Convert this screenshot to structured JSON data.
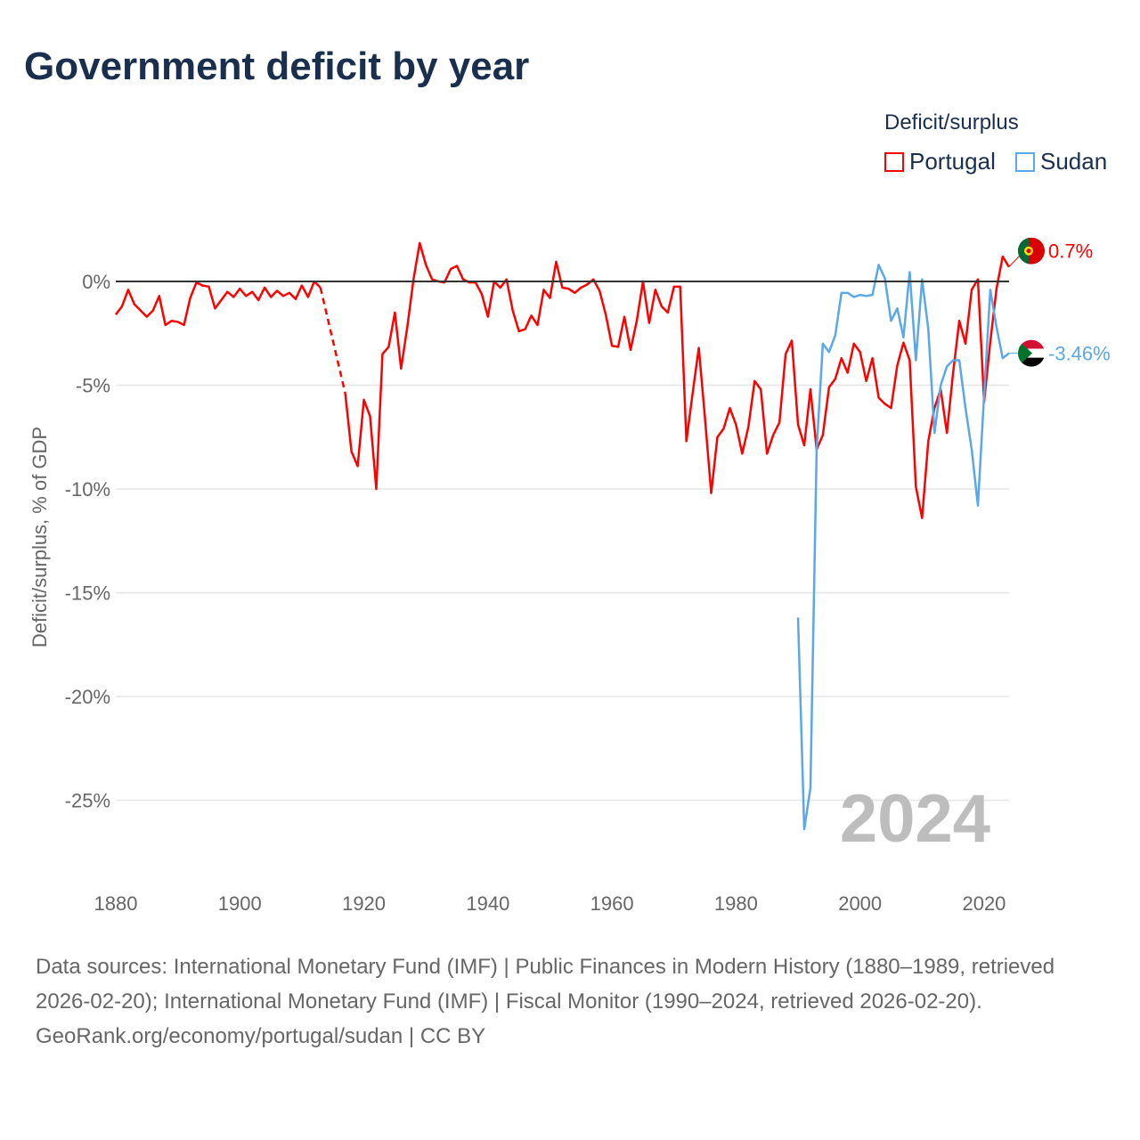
{
  "title": "Government deficit by year",
  "watermark_year": "2024",
  "legend": {
    "title": "Deficit/surplus",
    "items": [
      {
        "label": "Portugal",
        "color": "#ff0000"
      },
      {
        "label": "Sudan",
        "color": "#5aa7ea"
      }
    ]
  },
  "footer": {
    "sources": "Data sources: International Monetary Fund (IMF) | Public Finances in Modern History (1880–1989, retrieved 2026-02-20); International Monetary Fund (IMF) | Fiscal Monitor (1990–2024, retrieved 2026-02-20).",
    "credit": "GeoRank.org/economy/portugal/sudan | CC BY"
  },
  "chart_data": {
    "type": "line",
    "title": "Government deficit by year",
    "xlabel": "",
    "ylabel": "Deficit/surplus, % of GDP",
    "xlim": [
      1880,
      2024
    ],
    "ylim": [
      -27,
      2.5
    ],
    "xticks": [
      1880,
      1900,
      1920,
      1940,
      1960,
      1980,
      2000,
      2020
    ],
    "yticks": [
      0,
      -5,
      -10,
      -15,
      -20,
      -25
    ],
    "ytick_labels": [
      "0%",
      "-5%",
      "-10%",
      "-15%",
      "-20%",
      "-25%"
    ],
    "grid": true,
    "legend_position": "top-right",
    "series": [
      {
        "name": "Portugal",
        "color": "#ff0000",
        "end_label": "0.7%",
        "start_year": 1880,
        "values": [
          -1.6,
          -1.2,
          -0.4,
          -1.1,
          -1.4,
          -1.7,
          -1.4,
          -0.7,
          -2.1,
          -1.9,
          -1.95,
          -2.1,
          -0.8,
          -0.05,
          -0.2,
          -0.25,
          -1.3,
          -0.9,
          -0.5,
          -0.75,
          -0.35,
          -0.7,
          -0.5,
          -0.9,
          -0.3,
          -0.75,
          -0.45,
          -0.7,
          -0.55,
          -0.85,
          -0.2,
          -0.75,
          0,
          -0.3,
          null,
          null,
          null,
          -5.4,
          -8.2,
          -8.9,
          -5.7,
          -6.5,
          -10.0,
          -3.5,
          -3.15,
          -1.5,
          -4.2,
          -2.2,
          0.1,
          1.85,
          0.8,
          0.1,
          0,
          -0.05,
          0.6,
          0.75,
          0.1,
          -0.05,
          -0.05,
          -0.6,
          -1.7,
          0,
          -0.3,
          0.1,
          -1.4,
          -2.4,
          -2.3,
          -1.65,
          -2.1,
          -0.4,
          -0.8,
          0.95,
          -0.3,
          -0.35,
          -0.55,
          -0.3,
          -0.15,
          0.1,
          -0.45,
          -1.6,
          -3.1,
          -3.15,
          -1.7,
          -3.3,
          -1.9,
          0,
          -2.0,
          -0.4,
          -1.2,
          -1.5,
          -0.25,
          -0.25,
          -7.7,
          -5.4,
          -3.2,
          -6.6,
          -10.2,
          -7.5,
          -7.1,
          -6.1,
          -6.9,
          -8.3,
          -7.0,
          -4.8,
          -5.2,
          -8.3,
          -7.4,
          -6.8,
          -3.5,
          -2.85,
          -6.9,
          -7.9,
          -5.2,
          -8.1,
          -7.4,
          -5.1,
          -4.7,
          -3.7,
          -4.4,
          -3.0,
          -3.4,
          -4.8,
          -3.7,
          -5.6,
          -5.9,
          -6.1,
          -4.05,
          -2.95,
          -3.8,
          -9.9,
          -11.4,
          -7.7,
          -6.1,
          -5.2,
          -7.3,
          -4.4,
          -1.9,
          -3.0,
          -0.4,
          0.1,
          -5.8,
          -2.9,
          -0.35,
          1.2,
          0.7
        ]
      },
      {
        "name": "Sudan",
        "color": "#5aa7ea",
        "end_label": "-3.46%",
        "start_year": 1990,
        "values": [
          -16.2,
          -26.4,
          -24.4,
          -8.1,
          -3.0,
          -3.4,
          -2.6,
          -0.55,
          -0.55,
          -0.75,
          -0.65,
          -0.7,
          -0.65,
          0.8,
          0.15,
          -1.9,
          -1.3,
          -2.7,
          0.45,
          -3.8,
          0.1,
          -2.3,
          -7.3,
          -5.0,
          -4.1,
          -3.8,
          -3.8,
          -6.1,
          -8.1,
          -10.8,
          -5.5,
          -0.4,
          -2.2,
          -3.7,
          -3.46
        ]
      }
    ]
  }
}
